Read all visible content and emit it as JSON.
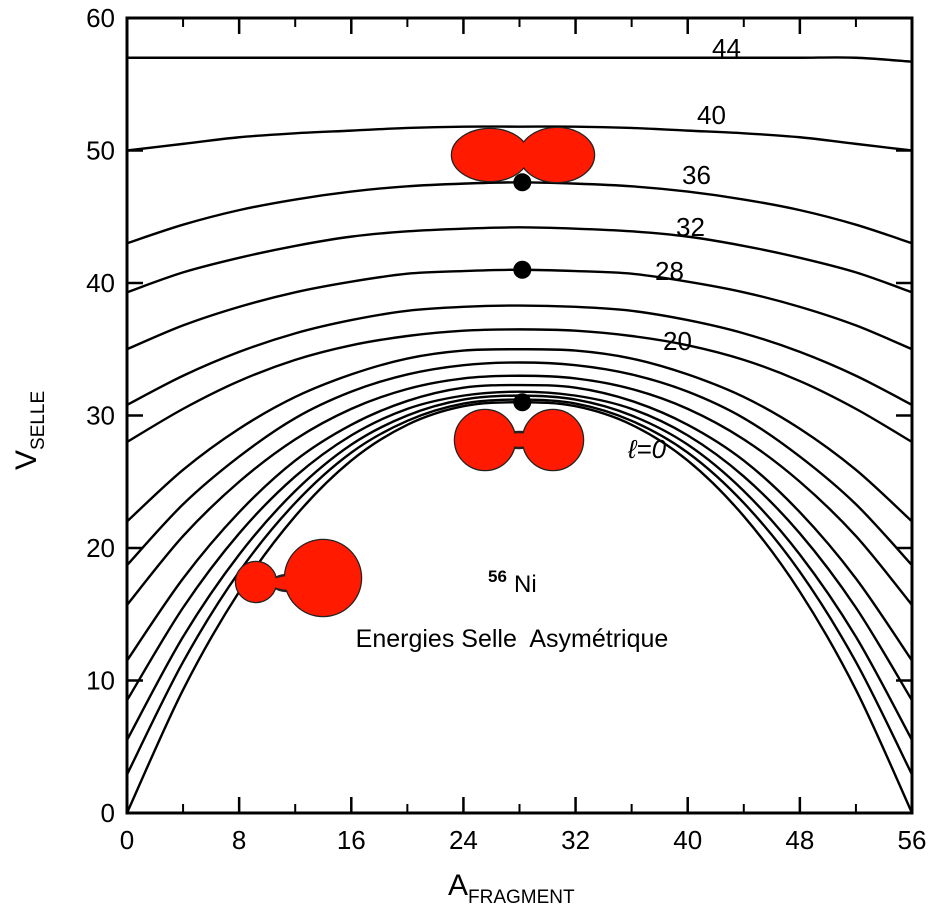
{
  "chart_data": {
    "type": "line",
    "x_label": "A",
    "x_label_sub": "FRAGMENT",
    "y_label": "V",
    "y_label_sub": "SELLE",
    "annotation_mass": "56",
    "annotation_element": "Ni",
    "annotation_text": "Energies Selle  Asymétrique",
    "x": [
      0,
      4,
      8,
      12,
      16,
      20,
      24,
      28,
      32,
      36,
      40,
      44,
      48,
      52,
      56
    ],
    "xlim": [
      0,
      56
    ],
    "ylim": [
      0,
      60
    ],
    "xticks": [
      0,
      8,
      16,
      24,
      32,
      40,
      48,
      56
    ],
    "xminorticks": [
      4,
      12,
      20,
      28,
      36,
      44,
      52
    ],
    "yticks": [
      0,
      10,
      20,
      30,
      40,
      50,
      60
    ],
    "color": "#000000",
    "points": {
      "x": [
        28.2,
        28.2,
        28.2
      ],
      "y": [
        47.6,
        41,
        31
      ]
    },
    "series": [
      {
        "name": "ℓ=0",
        "values": [
          0,
          9.3,
          16.7,
          22.4,
          26.6,
          29.3,
          30.7,
          31,
          30.7,
          29.3,
          26.6,
          22.4,
          16.7,
          9.3,
          0
        ]
      },
      {
        "values": [
          2.9,
          11.4,
          18.2,
          23.4,
          27.2,
          29.6,
          30.9,
          31.2,
          30.9,
          29.6,
          27.2,
          23.4,
          18.2,
          11.4,
          2.9
        ]
      },
      {
        "values": [
          5.5,
          13.3,
          19.5,
          24.3,
          27.8,
          30.0,
          31.2,
          31.5,
          31.2,
          30.0,
          27.8,
          24.3,
          19.5,
          13.3,
          5.5
        ]
      },
      {
        "values": [
          8.5,
          15.5,
          21.1,
          25.4,
          28.5,
          30.5,
          31.5,
          31.8,
          31.5,
          30.5,
          28.5,
          25.4,
          21.1,
          15.5,
          8.5
        ]
      },
      {
        "values": [
          11.5,
          17.7,
          22.7,
          26.6,
          29.3,
          31.1,
          32.1,
          32.3,
          32.1,
          31.1,
          29.3,
          26.6,
          22.7,
          17.7,
          11.5
        ]
      },
      {
        "values": [
          15.7,
          20.9,
          25.0,
          28.2,
          30.5,
          32.0,
          32.8,
          33,
          32.8,
          32.0,
          30.5,
          28.2,
          25.0,
          20.9,
          15.7
        ]
      },
      {
        "values": [
          18.7,
          23.3,
          26.9,
          29.8,
          31.8,
          33.1,
          33.8,
          34,
          33.8,
          33.1,
          31.8,
          29.8,
          26.9,
          23.3,
          18.7
        ]
      },
      {
        "values": [
          22,
          25.9,
          29,
          31.4,
          33.1,
          34.3,
          34.9,
          35,
          34.9,
          34.3,
          33.1,
          31.4,
          29,
          25.9,
          22
        ]
      },
      {
        "name": "20",
        "values": [
          28,
          30.5,
          32.6,
          34.2,
          35.3,
          36.0,
          36.4,
          36.5,
          36.4,
          36.0,
          35.3,
          34.2,
          32.6,
          30.5,
          28
        ]
      },
      {
        "values": [
          30.8,
          33.0,
          34.8,
          36.2,
          37.2,
          37.9,
          38.2,
          38.3,
          38.2,
          37.9,
          37.2,
          36.2,
          34.8,
          33.0,
          30.8
        ]
      },
      {
        "name": "28",
        "values": [
          35,
          36.8,
          38.2,
          39.3,
          40.1,
          40.7,
          40.9,
          41,
          40.9,
          40.7,
          40.1,
          39.3,
          38.2,
          36.8,
          35
        ]
      },
      {
        "name": "32",
        "values": [
          39.3,
          40.8,
          41.9,
          42.8,
          43.5,
          43.9,
          44.1,
          44.2,
          44.1,
          43.9,
          43.5,
          42.8,
          41.9,
          40.8,
          39.3
        ]
      },
      {
        "name": "36",
        "values": [
          43,
          44.4,
          45.5,
          46.3,
          46.9,
          47.3,
          47.5,
          47.6,
          47.5,
          47.3,
          46.9,
          46.3,
          45.5,
          44.4,
          43
        ]
      },
      {
        "name": "40",
        "values": [
          50,
          50.5,
          51.0,
          51.3,
          51.5,
          51.7,
          51.8,
          51.8,
          51.8,
          51.7,
          51.5,
          51.3,
          51.0,
          50.5,
          50
        ]
      },
      {
        "name": "44",
        "values": [
          57,
          57,
          57,
          57,
          57,
          57,
          57,
          57,
          57,
          57,
          57,
          57,
          57,
          57,
          56.7
        ]
      }
    ]
  }
}
